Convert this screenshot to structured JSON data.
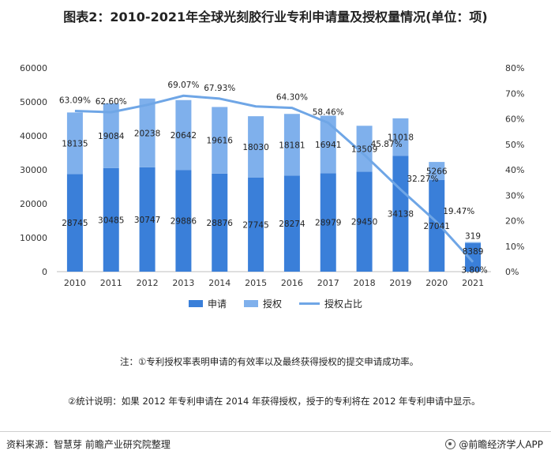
{
  "title": "图表2：2010-2021年全球光刻胶行业专利申请量及授权量情况(单位：项)",
  "colors": {
    "apply": "#3a7fd9",
    "grant": "#7fb0ec",
    "ratio_line": "#6fa6e6"
  },
  "legend": {
    "apply": "申请",
    "grant": "授权",
    "ratio": "授权占比"
  },
  "notes": {
    "note1": "注：①专利授权率表明申请的有效率以及最终获得授权的提交申请成功率。",
    "note2": "②统计说明：如果 2012 年专利申请在 2014 年获得授权，授于的专利将在 2012 年专利申请中显示。"
  },
  "footer": {
    "source": "资料来源：智慧芽 前瞻产业研究院整理",
    "brand": "@前瞻经济学人APP"
  },
  "chart_data": {
    "type": "bar",
    "stacked": true,
    "categories": [
      "2010",
      "2011",
      "2012",
      "2013",
      "2014",
      "2015",
      "2016",
      "2017",
      "2018",
      "2019",
      "2020",
      "2021"
    ],
    "series": [
      {
        "name": "申请",
        "values": [
          28745,
          30485,
          30747,
          29886,
          28876,
          27745,
          28274,
          28979,
          29450,
          34138,
          27041,
          8389
        ]
      },
      {
        "name": "授权",
        "values": [
          18135,
          19084,
          20238,
          20642,
          19616,
          18030,
          18181,
          16941,
          13509,
          11018,
          5266,
          319
        ]
      },
      {
        "name": "授权占比",
        "axis": "right",
        "type": "line",
        "values": [
          63.09,
          62.6,
          65.48,
          69.07,
          67.93,
          64.89,
          64.3,
          58.46,
          45.87,
          32.27,
          19.47,
          3.8
        ],
        "labels": [
          "63.09%",
          "62.60%",
          "",
          "69.07%",
          "67.93%",
          "",
          "64.30%",
          "58.46%",
          "45.87%",
          "32.27%",
          "19.47%",
          "3.80%"
        ]
      }
    ],
    "y_left": {
      "min": 0,
      "max": 60000,
      "ticks": [
        "0",
        "10000",
        "20000",
        "30000",
        "40000",
        "50000",
        "60000"
      ]
    },
    "y_right": {
      "min": 0,
      "max": 80,
      "ticks": [
        "0%",
        "10%",
        "20%",
        "30%",
        "40%",
        "50%",
        "60%",
        "70%",
        "80%"
      ]
    },
    "grid": false,
    "legend_position": "bottom"
  }
}
